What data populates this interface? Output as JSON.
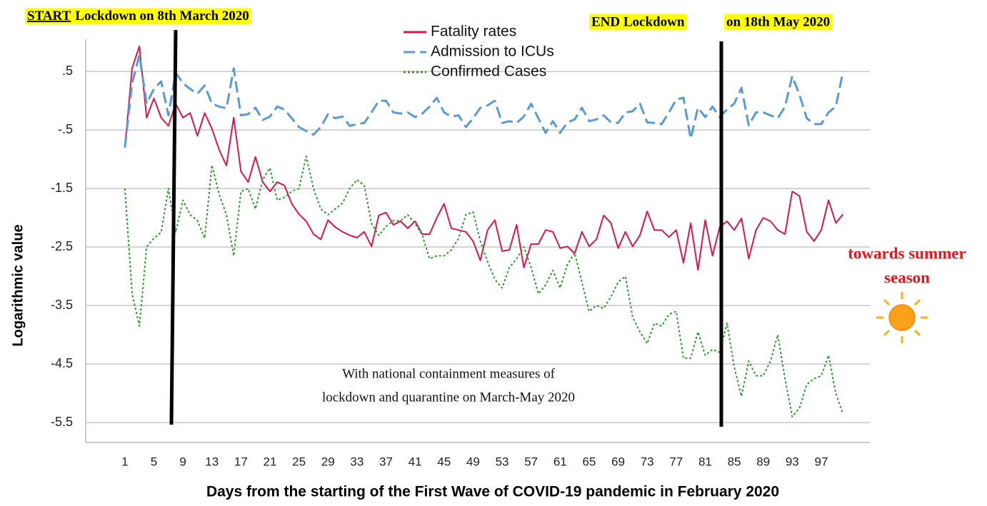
{
  "chart_data": {
    "type": "line",
    "ylabel": "Logarithmic value",
    "xlabel": "Days from the starting of the First Wave of COVID-19 pandemic in February 2020",
    "x": [
      1,
      2,
      3,
      4,
      5,
      6,
      7,
      8,
      9,
      10,
      11,
      12,
      13,
      14,
      15,
      16,
      17,
      18,
      19,
      20,
      21,
      22,
      23,
      24,
      25,
      26,
      27,
      28,
      29,
      30,
      31,
      32,
      33,
      34,
      35,
      36,
      37,
      38,
      39,
      40,
      41,
      42,
      43,
      44,
      45,
      46,
      47,
      48,
      49,
      50,
      51,
      52,
      53,
      54,
      55,
      56,
      57,
      58,
      59,
      60,
      61,
      62,
      63,
      64,
      65,
      66,
      67,
      68,
      69,
      70,
      71,
      72,
      73,
      74,
      75,
      76,
      77,
      78,
      79,
      80,
      81,
      82,
      83,
      84,
      85,
      86,
      87,
      88,
      89,
      90,
      91,
      92,
      93,
      94,
      95,
      96,
      97,
      98,
      99,
      100
    ],
    "xlim": [
      -4.4,
      103.7
    ],
    "xticks": [
      1,
      5,
      9,
      13,
      17,
      21,
      25,
      29,
      33,
      37,
      41,
      45,
      49,
      53,
      57,
      61,
      65,
      69,
      73,
      77,
      81,
      85,
      89,
      93,
      97
    ],
    "ylim": [
      -5.84,
      1.05
    ],
    "yticks": [
      {
        "value": 0.5,
        "label": ".5"
      },
      {
        "value": -0.5,
        "label": "-.5"
      },
      -1.5,
      -2.5,
      -3.5,
      -4.5,
      -5.5
    ],
    "grid": true,
    "legend": "top",
    "series": [
      {
        "name": "Fatality rates",
        "color": "#d5194c",
        "dash": "solid",
        "values": [
          -0.8,
          0.56,
          0.93,
          -0.29,
          0.04,
          -0.29,
          -0.43,
          -0.05,
          -0.29,
          -0.21,
          -0.6,
          -0.21,
          -0.48,
          -0.84,
          -1.11,
          -0.29,
          -1.21,
          -1.39,
          -0.96,
          -1.39,
          -1.55,
          -1.39,
          -1.45,
          -1.76,
          -1.94,
          -2.06,
          -2.28,
          -2.37,
          -2.04,
          -2.16,
          -2.24,
          -2.3,
          -2.34,
          -2.24,
          -2.49,
          -1.96,
          -1.91,
          -2.12,
          -2.06,
          -2.18,
          -2.06,
          -2.28,
          -2.28,
          -2.0,
          -1.76,
          -2.18,
          -2.21,
          -2.24,
          -2.4,
          -2.73,
          -2.21,
          -2.04,
          -2.57,
          -2.55,
          -2.12,
          -2.85,
          -2.45,
          -2.45,
          -2.21,
          -2.24,
          -2.52,
          -2.49,
          -2.61,
          -2.24,
          -2.49,
          -2.37,
          -1.96,
          -2.09,
          -2.52,
          -2.24,
          -2.49,
          -2.3,
          -1.89,
          -2.21,
          -2.21,
          -2.33,
          -2.21,
          -2.77,
          -2.09,
          -2.89,
          -2.04,
          -2.65,
          -2.16,
          -2.06,
          -2.21,
          -2.01,
          -2.7,
          -2.21,
          -2.0,
          -2.06,
          -2.21,
          -2.28,
          -1.55,
          -1.63,
          -2.24,
          -2.4,
          -2.21,
          -1.7,
          -2.09,
          -1.94
        ]
      },
      {
        "name": "Admission to ICUs",
        "color": "#5b9bd5",
        "dash": "dashed",
        "values": [
          -0.8,
          0.3,
          0.78,
          -0.05,
          0.2,
          0.33,
          -0.25,
          0.48,
          0.3,
          0.2,
          0.12,
          0.26,
          -0.05,
          -0.1,
          -0.13,
          0.55,
          -0.25,
          -0.23,
          -0.12,
          -0.33,
          -0.27,
          -0.1,
          -0.15,
          -0.3,
          -0.45,
          -0.52,
          -0.58,
          -0.45,
          -0.23,
          -0.3,
          -0.27,
          -0.43,
          -0.4,
          -0.38,
          -0.2,
          0.0,
          0.0,
          -0.2,
          -0.22,
          -0.2,
          -0.28,
          -0.22,
          -0.1,
          0.05,
          -0.2,
          -0.27,
          -0.25,
          -0.45,
          -0.3,
          -0.12,
          -0.08,
          0.0,
          -0.38,
          -0.35,
          -0.38,
          -0.27,
          -0.05,
          -0.3,
          -0.55,
          -0.35,
          -0.55,
          -0.37,
          -0.32,
          -0.12,
          -0.35,
          -0.32,
          -0.25,
          -0.37,
          -0.38,
          -0.2,
          -0.18,
          -0.05,
          -0.37,
          -0.38,
          -0.4,
          -0.2,
          0.02,
          0.05,
          -0.65,
          -0.12,
          -0.28,
          -0.1,
          -0.28,
          -0.15,
          -0.05,
          0.22,
          -0.42,
          -0.2,
          -0.2,
          -0.25,
          -0.3,
          -0.1,
          0.42,
          0.1,
          -0.3,
          -0.4,
          -0.4,
          -0.2,
          -0.1,
          0.5
        ]
      },
      {
        "name": "Confirmed Cases",
        "color": "#2e9a2e",
        "dash": "dotted",
        "values": [
          -1.5,
          -3.3,
          -3.85,
          -2.5,
          -2.35,
          -2.25,
          -1.5,
          -2.25,
          -1.7,
          -1.95,
          -2.05,
          -2.35,
          -1.1,
          -1.6,
          -1.95,
          -2.65,
          -1.55,
          -1.5,
          -1.85,
          -1.35,
          -1.15,
          -1.7,
          -1.65,
          -1.55,
          -1.5,
          -0.95,
          -1.5,
          -1.85,
          -1.95,
          -1.85,
          -1.75,
          -1.5,
          -1.35,
          -1.45,
          -2.1,
          -2.3,
          -2.15,
          -2.05,
          -2.05,
          -1.95,
          -2.1,
          -2.3,
          -2.7,
          -2.65,
          -2.65,
          -2.55,
          -2.35,
          -1.95,
          -1.9,
          -2.4,
          -2.75,
          -3.05,
          -3.2,
          -2.85,
          -2.7,
          -2.5,
          -2.85,
          -3.3,
          -3.15,
          -2.9,
          -3.2,
          -2.8,
          -2.6,
          -3.1,
          -3.6,
          -3.5,
          -3.55,
          -3.35,
          -3.1,
          -3.0,
          -3.7,
          -3.95,
          -4.15,
          -3.8,
          -3.85,
          -3.65,
          -3.6,
          -4.4,
          -4.4,
          -3.95,
          -4.35,
          -4.25,
          -4.3,
          -3.8,
          -4.55,
          -5.05,
          -4.45,
          -4.7,
          -4.7,
          -4.45,
          -4.0,
          -4.75,
          -5.4,
          -5.25,
          -4.85,
          -4.75,
          -4.7,
          -4.35,
          -5.0,
          -5.35
        ]
      }
    ],
    "annotations": {
      "start": [
        "START",
        "Lockdown on 8th March 2020"
      ],
      "end": [
        "END Lockdown",
        "on 18th May 2020"
      ],
      "note": [
        "With national containment measures of",
        "lockdown and quarantine on March-May 2020"
      ],
      "season": [
        "towards summer",
        "season"
      ]
    }
  }
}
